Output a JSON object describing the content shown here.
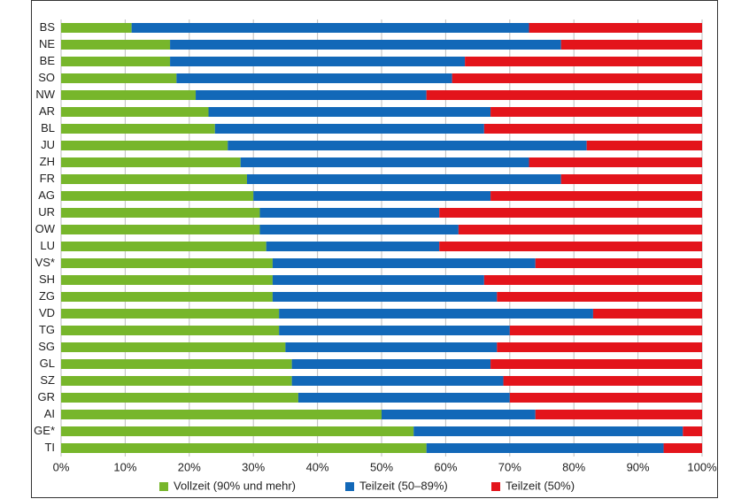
{
  "chart_data": {
    "type": "stacked-barh",
    "categories": [
      "BS",
      "NE",
      "BE",
      "SO",
      "NW",
      "AR",
      "BL",
      "JU",
      "ZH",
      "FR",
      "AG",
      "UR",
      "OW",
      "LU",
      "VS*",
      "SH",
      "ZG",
      "VD",
      "TG",
      "SG",
      "GL",
      "SZ",
      "GR",
      "AI",
      "GE*",
      "TI"
    ],
    "series": [
      {
        "name": "Vollzeit (90% und mehr)",
        "color": "#77b62b",
        "values": [
          11,
          17,
          17,
          18,
          21,
          23,
          24,
          26,
          28,
          29,
          30,
          31,
          31,
          32,
          33,
          33,
          33,
          34,
          34,
          35,
          36,
          36,
          37,
          50,
          55,
          57
        ]
      },
      {
        "name": "Teilzeit (50–89%)",
        "color": "#1268b8",
        "values": [
          62,
          61,
          46,
          43,
          36,
          44,
          42,
          56,
          45,
          49,
          37,
          28,
          31,
          27,
          41,
          33,
          35,
          49,
          36,
          33,
          31,
          33,
          33,
          24,
          42,
          37
        ]
      },
      {
        "name": "Teilzeit (50%)",
        "color": "#e3141b",
        "values": [
          27,
          22,
          37,
          39,
          43,
          33,
          34,
          18,
          27,
          22,
          33,
          41,
          38,
          41,
          26,
          34,
          32,
          17,
          30,
          32,
          33,
          31,
          30,
          26,
          3,
          6
        ]
      }
    ],
    "xlim": [
      0,
      100
    ],
    "xticks": [
      {
        "value": 0,
        "label": "0%"
      },
      {
        "value": 10,
        "label": "10%"
      },
      {
        "value": 20,
        "label": "20%"
      },
      {
        "value": 30,
        "label": "30%"
      },
      {
        "value": 40,
        "label": "40%"
      },
      {
        "value": 50,
        "label": "50%"
      },
      {
        "value": 60,
        "label": "60%"
      },
      {
        "value": 70,
        "label": "70%"
      },
      {
        "value": 80,
        "label": "80%"
      },
      {
        "value": 90,
        "label": "90%"
      },
      {
        "value": 100,
        "label": "100%"
      }
    ],
    "grid": true,
    "legend": "bottom"
  }
}
